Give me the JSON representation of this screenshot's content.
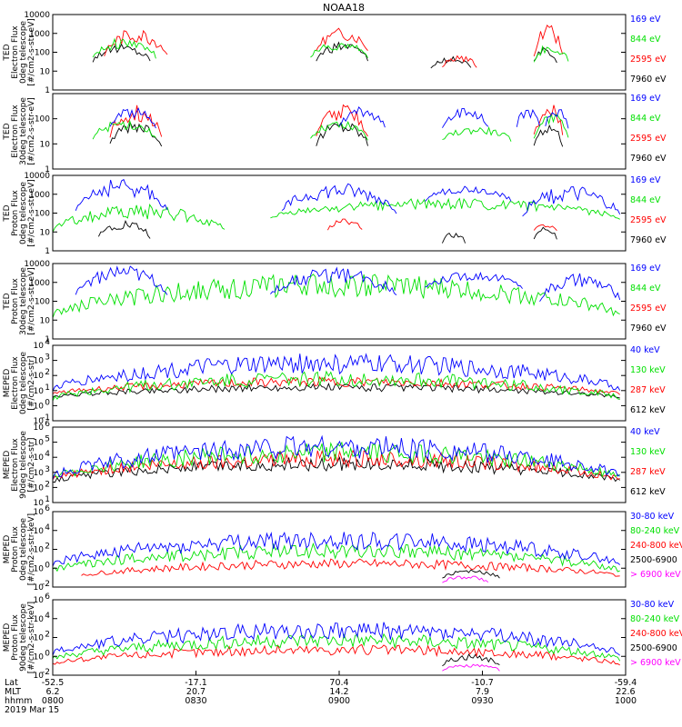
{
  "title": "NOAA18",
  "colors": {
    "black": "#000000",
    "red": "#ff0000",
    "green": "#00e000",
    "blue": "#0000ff",
    "magenta": "#ff00ff"
  },
  "footer": {
    "rows": [
      {
        "label": "Lat",
        "values": [
          "-52.5",
          "-17.1",
          "70.4",
          "-10.7",
          "-59.4"
        ]
      },
      {
        "label": "MLT",
        "values": [
          "6.2",
          "20.7",
          "14.2",
          "7.9",
          "22.6"
        ]
      },
      {
        "label": "hhmm",
        "values": [
          "0800",
          "0830",
          "0900",
          "0930",
          "1000"
        ]
      }
    ],
    "date": "2019 Mar 15"
  },
  "chart_data": [
    {
      "type": "line",
      "ylabel": [
        "TED",
        "Electron Flux",
        "0deg telescope",
        "[#/cm2-s-str-eV]"
      ],
      "ylim": [
        1,
        10000
      ],
      "log": true,
      "y_ticks": [
        {
          "v": 10000,
          "t": "10000"
        },
        {
          "v": 1000,
          "t": "1000"
        },
        {
          "v": 100,
          "t": "100"
        },
        {
          "v": 10,
          "t": "10"
        },
        {
          "v": 1,
          "t": "1"
        }
      ],
      "series": [
        {
          "name": "7960 eV",
          "color": "black",
          "segments": [
            [
              0.07,
              0.17,
              20,
              300
            ],
            [
              0.46,
              0.55,
              20,
              400
            ],
            [
              0.66,
              0.73,
              10,
              60
            ],
            [
              0.84,
              0.88,
              20,
              200
            ]
          ]
        },
        {
          "name": "2595 eV",
          "color": "red",
          "segments": [
            [
              0.09,
              0.2,
              30,
              2000
            ],
            [
              0.46,
              0.55,
              60,
              2000
            ],
            [
              0.68,
              0.74,
              10,
              80
            ],
            [
              0.84,
              0.89,
              30,
              3000
            ]
          ]
        },
        {
          "name": "844 eV",
          "color": "green",
          "segments": [
            [
              0.07,
              0.18,
              30,
              600
            ],
            [
              0.45,
              0.55,
              30,
              400
            ],
            [
              0.84,
              0.9,
              20,
              300
            ]
          ]
        },
        {
          "name": "169 eV",
          "color": "blue",
          "segments": []
        }
      ]
    },
    {
      "type": "line",
      "ylabel": [
        "TED",
        "Electron Flux",
        "30deg telescope",
        "[#/cm2-s-str-eV]"
      ],
      "ylim": [
        1,
        1000
      ],
      "log": true,
      "y_ticks": [
        {
          "v": 100,
          "t": "100"
        },
        {
          "v": 10,
          "t": "10"
        },
        {
          "v": 1,
          "t": "1"
        }
      ],
      "series": [
        {
          "name": "7960 eV",
          "color": "black",
          "segments": [
            [
              0.1,
              0.19,
              5,
              100
            ],
            [
              0.46,
              0.55,
              5,
              100
            ],
            [
              0.84,
              0.89,
              5,
              80
            ]
          ]
        },
        {
          "name": "2595 eV",
          "color": "red",
          "segments": [
            [
              0.1,
              0.19,
              10,
              400
            ],
            [
              0.46,
              0.55,
              10,
              400
            ],
            [
              0.84,
              0.89,
              10,
              500
            ]
          ]
        },
        {
          "name": "844 eV",
          "color": "green",
          "segments": [
            [
              0.07,
              0.18,
              10,
              100
            ],
            [
              0.45,
              0.55,
              10,
              100
            ],
            [
              0.68,
              0.8,
              10,
              50
            ],
            [
              0.84,
              0.9,
              10,
              200
            ]
          ]
        },
        {
          "name": "169 eV",
          "color": "blue",
          "segments": [
            [
              0.1,
              0.18,
              30,
              300
            ],
            [
              0.5,
              0.58,
              30,
              300
            ],
            [
              0.68,
              0.76,
              30,
              300
            ],
            [
              0.81,
              0.85,
              30,
              300
            ],
            [
              0.86,
              0.9,
              30,
              300
            ]
          ]
        }
      ]
    },
    {
      "type": "line",
      "ylabel": [
        "TED",
        "Proton Flux",
        "0deg telescope",
        "[#/cm2-s-str-eV]"
      ],
      "ylim": [
        1,
        10000
      ],
      "log": true,
      "y_ticks": [
        {
          "v": 10000,
          "t": "10000"
        },
        {
          "v": 1000,
          "t": "1000"
        },
        {
          "v": 100,
          "t": "100"
        },
        {
          "v": 10,
          "t": "10"
        },
        {
          "v": 1,
          "t": "1"
        }
      ],
      "series": [
        {
          "name": "7960 eV",
          "color": "black",
          "segments": [
            [
              0.08,
              0.17,
              3,
              50
            ],
            [
              0.68,
              0.72,
              2,
              10
            ],
            [
              0.84,
              0.88,
              3,
              20
            ]
          ]
        },
        {
          "name": "2595 eV",
          "color": "red",
          "segments": [
            [
              0.48,
              0.54,
              10,
              50
            ],
            [
              0.84,
              0.88,
              10,
              30
            ]
          ]
        },
        {
          "name": "844 eV",
          "color": "green",
          "segments": [
            [
              0.0,
              0.3,
              5,
              300
            ],
            [
              0.38,
              0.99,
              30,
              600
            ]
          ]
        },
        {
          "name": "169 eV",
          "color": "blue",
          "segments": [
            [
              0.04,
              0.2,
              50,
              8000
            ],
            [
              0.4,
              0.6,
              50,
              4000
            ],
            [
              0.65,
              0.8,
              300,
              3000
            ],
            [
              0.82,
              0.99,
              30,
              3000
            ]
          ]
        }
      ]
    },
    {
      "type": "line",
      "ylabel": [
        "TED",
        "Proton Flux",
        "30deg telescope",
        "[#/cm2-s-str-eV]"
      ],
      "ylim": [
        1,
        10000
      ],
      "log": true,
      "y_ticks": [
        {
          "v": 10000,
          "t": "10000"
        },
        {
          "v": 1000,
          "t": "1000"
        },
        {
          "v": 100,
          "t": "100"
        },
        {
          "v": 10,
          "t": "10"
        },
        {
          "v": 1,
          "t": "1"
        }
      ],
      "series": [
        {
          "name": "7960 eV",
          "color": "black",
          "segments": []
        },
        {
          "name": "2595 eV",
          "color": "red",
          "segments": []
        },
        {
          "name": "844 eV",
          "color": "green",
          "segments": [
            [
              0.0,
              0.99,
              5,
              3000
            ]
          ]
        },
        {
          "name": "169 eV",
          "color": "blue",
          "segments": [
            [
              0.04,
              0.2,
              100,
              8000
            ],
            [
              0.38,
              0.6,
              100,
              6000
            ],
            [
              0.65,
              0.82,
              300,
              4000
            ],
            [
              0.85,
              0.99,
              50,
              3000
            ]
          ]
        }
      ]
    },
    {
      "type": "line",
      "ylabel": [
        "MEPED",
        "Electron Flux",
        "0deg telescope",
        "[#/cm2-s-str]"
      ],
      "ylim": [
        0.1,
        10000
      ],
      "log": true,
      "y_ticks": [
        {
          "v": 10000,
          "t": "10",
          "e": "4"
        },
        {
          "v": 1000,
          "t": "10",
          "e": "3"
        },
        {
          "v": 100,
          "t": "10",
          "e": "2"
        },
        {
          "v": 10,
          "t": "10",
          "e": "1"
        },
        {
          "v": 1,
          "t": "10",
          "e": "0"
        },
        {
          "v": 0.1,
          "t": "10",
          "e": "-1"
        }
      ],
      "series": [
        {
          "name": "612 keV",
          "color": "black",
          "segments": [
            [
              0.0,
              0.99,
              2,
              30
            ]
          ]
        },
        {
          "name": "287 keV",
          "color": "red",
          "segments": [
            [
              0.0,
              0.99,
              3,
              80
            ]
          ]
        },
        {
          "name": "130 keV",
          "color": "green",
          "segments": [
            [
              0.0,
              0.99,
              1,
              200
            ]
          ]
        },
        {
          "name": "40 keV",
          "color": "blue",
          "segments": [
            [
              0.0,
              0.99,
              3,
              3000
            ]
          ]
        }
      ]
    },
    {
      "type": "line",
      "ylabel": [
        "MEPED",
        "Electron Flux",
        "90deg telescope",
        "[#/cm2-s-str]"
      ],
      "ylim": [
        10,
        1000000
      ],
      "log": true,
      "y_ticks": [
        {
          "v": 1000000,
          "t": "10",
          "e": "6"
        },
        {
          "v": 100000,
          "t": "10",
          "e": "5"
        },
        {
          "v": 10000,
          "t": "10",
          "e": "4"
        },
        {
          "v": 1000,
          "t": "10",
          "e": "3"
        },
        {
          "v": 100,
          "t": "10",
          "e": "2"
        },
        {
          "v": 10,
          "t": "10",
          "e": "1"
        }
      ],
      "series": [
        {
          "name": "612 keV",
          "color": "black",
          "segments": [
            [
              0.0,
              0.99,
              100,
              10000
            ]
          ]
        },
        {
          "name": "287 keV",
          "color": "red",
          "segments": [
            [
              0.0,
              0.99,
              100,
              30000
            ]
          ]
        },
        {
          "name": "130 keV",
          "color": "green",
          "segments": [
            [
              0.0,
              0.99,
              100,
              100000
            ]
          ]
        },
        {
          "name": "40 keV",
          "color": "blue",
          "segments": [
            [
              0.0,
              0.99,
              100,
              300000
            ]
          ]
        }
      ]
    },
    {
      "type": "line",
      "ylabel": [
        "MEPED",
        "Proton Flux",
        "0deg telescope",
        "[#/cm2-s-str-keV]"
      ],
      "ylim": [
        0.01,
        1000000
      ],
      "log": true,
      "y_ticks": [
        {
          "v": 1000000,
          "t": "10",
          "e": "6"
        },
        {
          "v": 10000,
          "t": "10",
          "e": "4"
        },
        {
          "v": 100,
          "t": "10",
          "e": "2"
        },
        {
          "v": 1,
          "t": "10",
          "e": "0"
        },
        {
          "v": 0.01,
          "t": "10",
          "e": "-2"
        }
      ],
      "series": [
        {
          "name": "> 6900 keV",
          "color": "magenta",
          "segments": [
            [
              0.68,
              0.76,
              0.02,
              0.2
            ]
          ]
        },
        {
          "name": "2500-6900",
          "color": "black",
          "segments": [
            [
              0.68,
              0.78,
              0.05,
              1
            ]
          ]
        },
        {
          "name": "240-800 keV",
          "color": "red",
          "segments": [
            [
              0.05,
              0.99,
              0.05,
              10
            ]
          ]
        },
        {
          "name": "80-240 keV",
          "color": "green",
          "segments": [
            [
              0.0,
              0.99,
              0.1,
              500
            ]
          ]
        },
        {
          "name": "30-80 keV",
          "color": "blue",
          "segments": [
            [
              0.0,
              0.99,
              0.3,
              10000
            ]
          ]
        }
      ]
    },
    {
      "type": "line",
      "ylabel": [
        "MEPED",
        "Proton Flux",
        "90deg telescope",
        "[#/cm2-s-str-keV]"
      ],
      "ylim": [
        0.01,
        1000000
      ],
      "log": true,
      "y_ticks": [
        {
          "v": 1000000,
          "t": "10",
          "e": "6"
        },
        {
          "v": 10000,
          "t": "10",
          "e": "4"
        },
        {
          "v": 100,
          "t": "10",
          "e": "2"
        },
        {
          "v": 1,
          "t": "10",
          "e": "0"
        },
        {
          "v": 0.01,
          "t": "10",
          "e": "-2"
        }
      ],
      "series": [
        {
          "name": "> 6900 keV",
          "color": "magenta",
          "segments": [
            [
              0.68,
              0.78,
              0.02,
              0.2
            ]
          ]
        },
        {
          "name": "2500-6900",
          "color": "black",
          "segments": [
            [
              0.68,
              0.78,
              0.05,
              2
            ]
          ]
        },
        {
          "name": "240-800 keV",
          "color": "red",
          "segments": [
            [
              0.0,
              0.99,
              0.05,
              20
            ]
          ]
        },
        {
          "name": "80-240 keV",
          "color": "green",
          "segments": [
            [
              0.0,
              0.99,
              0.1,
              300
            ]
          ]
        },
        {
          "name": "30-80 keV",
          "color": "blue",
          "segments": [
            [
              0.0,
              0.99,
              0.3,
              5000
            ]
          ]
        }
      ]
    }
  ]
}
